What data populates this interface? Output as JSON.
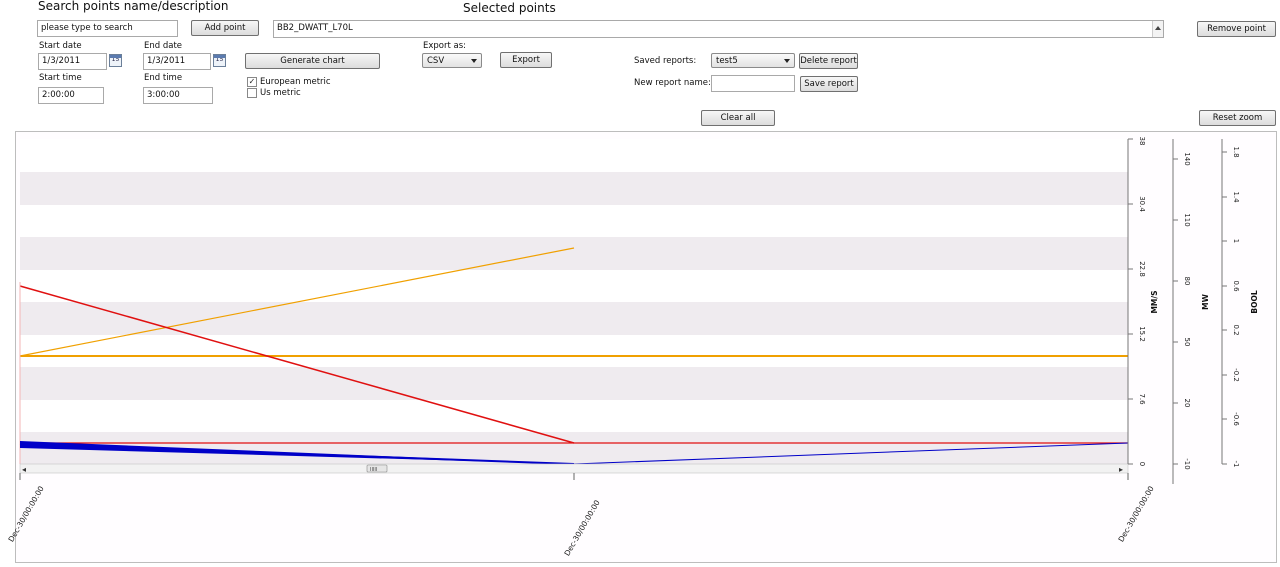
{
  "search": {
    "header": "Search points name/description",
    "input_value": "please type to search",
    "add_button": "Add point"
  },
  "selected": {
    "header": "Selected points",
    "value": "BB2_DWATT_L70L",
    "remove_button": "Remove point"
  },
  "dates": {
    "start_date_label": "Start date",
    "start_date_value": "1/3/2011",
    "end_date_label": "End date",
    "end_date_value": "1/3/2011",
    "start_time_label": "Start time",
    "start_time_value": "2:00:00",
    "end_time_label": "End time",
    "end_time_value": "3:00:00",
    "calendar_glyph": "15"
  },
  "generate_button": "Generate chart",
  "metric": {
    "european_label": "European metric",
    "european_checked": true,
    "us_label": "Us metric",
    "us_checked": false,
    "check_glyph": "✓"
  },
  "export": {
    "label": "Export as:",
    "selected": "CSV",
    "button": "Export"
  },
  "reports": {
    "saved_label": "Saved reports:",
    "saved_selected": "test5",
    "delete_button": "Delete report",
    "new_label": "New report name:",
    "new_value": "",
    "save_button": "Save report"
  },
  "clear_button": "Clear all",
  "reset_zoom_button": "Reset zoom",
  "scrollbar": {
    "left_arrow": "◂",
    "right_arrow": "▸",
    "thumb_glyph": "IIIII"
  },
  "chart_data": {
    "type": "line",
    "x_ticks": [
      "Dec-30/00:00:00",
      "Dec-30/00:00:00",
      "Dec-30/00:00:00"
    ],
    "axes": [
      {
        "label": "MM/S",
        "ticks": [
          "0",
          "7.6",
          "15.2",
          "22.8",
          "30.4",
          "38"
        ]
      },
      {
        "label": "MW",
        "ticks": [
          "-10",
          "20",
          "50",
          "80",
          "110",
          "140"
        ]
      },
      {
        "label": "BOOL",
        "ticks": [
          "-1",
          "-0.6",
          "-0.2",
          "0.2",
          "0.6",
          "1",
          "1.4",
          "1.8"
        ]
      }
    ],
    "series_colors": {
      "orange": "#f0a000",
      "red": "#e01010",
      "blue": "#0000c8"
    }
  }
}
